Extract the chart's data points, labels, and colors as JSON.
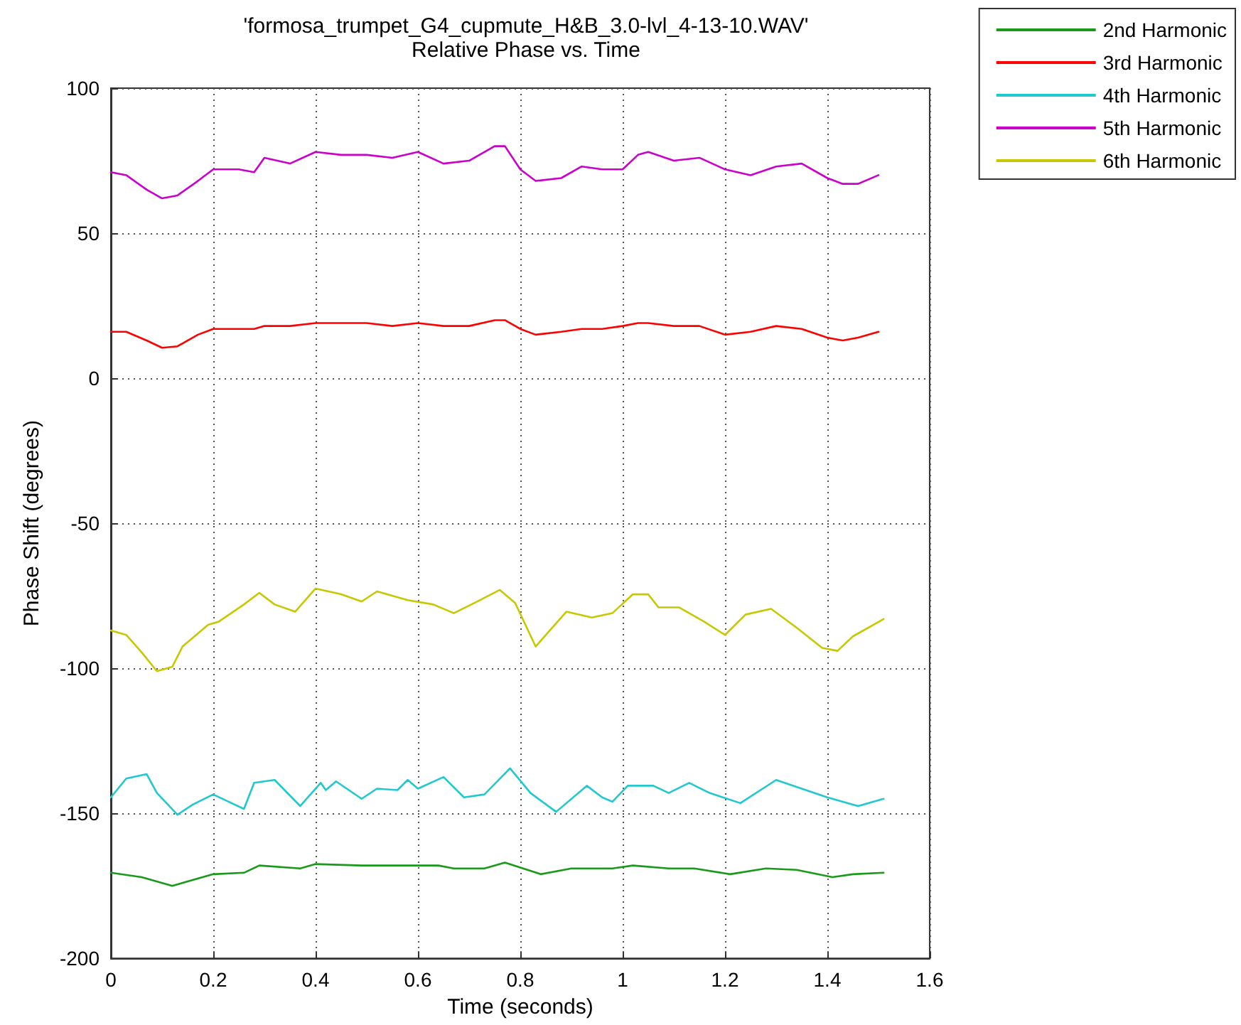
{
  "chart_data": {
    "type": "line",
    "title": "'formosa_trumpet_G4_cupmute_H&B_3.0-lvl_4-13-10.WAV'",
    "subtitle": "Relative Phase vs. Time",
    "xlabel": "Time (seconds)",
    "ylabel": "Phase Shift (degrees)",
    "xlim": [
      0,
      1.6
    ],
    "xticks": [
      0,
      0.2,
      0.4,
      0.6,
      0.8,
      1,
      1.2,
      1.4,
      1.6
    ],
    "ylim": [
      -200,
      100
    ],
    "yticks": [
      -200,
      -150,
      -100,
      -50,
      0,
      50,
      100
    ],
    "grid": true,
    "legend": "top right",
    "marker": "none",
    "line_style": "solid",
    "series": [
      {
        "name": "2nd Harmonic",
        "color": "#1a9a1a",
        "x": [
          0,
          0.06,
          0.12,
          0.2,
          0.26,
          0.29,
          0.37,
          0.4,
          0.49,
          0.56,
          0.64,
          0.67,
          0.73,
          0.77,
          0.84,
          0.9,
          0.98,
          1.02,
          1.09,
          1.14,
          1.21,
          1.28,
          1.34,
          1.41,
          1.45,
          1.51
        ],
        "values": [
          -170.5,
          -172,
          -175,
          -171,
          -170.5,
          -168,
          -169,
          -167.5,
          -168,
          -168,
          -168,
          -169,
          -169,
          -167,
          -171,
          -169,
          -169,
          -168,
          -169,
          -169,
          -171,
          -169,
          -169.5,
          -172,
          -171,
          -170.5
        ]
      },
      {
        "name": "3rd Harmonic",
        "color": "#ff0000",
        "x": [
          0,
          0.03,
          0.07,
          0.1,
          0.13,
          0.17,
          0.2,
          0.25,
          0.28,
          0.3,
          0.35,
          0.4,
          0.45,
          0.5,
          0.55,
          0.6,
          0.65,
          0.7,
          0.75,
          0.77,
          0.8,
          0.83,
          0.88,
          0.92,
          0.96,
          1.0,
          1.03,
          1.05,
          1.1,
          1.15,
          1.2,
          1.25,
          1.3,
          1.35,
          1.4,
          1.43,
          1.46,
          1.5
        ],
        "values": [
          16,
          16,
          13,
          10.5,
          11,
          15,
          17,
          17,
          17,
          18,
          18,
          19,
          19,
          19,
          18,
          19,
          18,
          18,
          20,
          20,
          17,
          15,
          16,
          17,
          17,
          18,
          19,
          19,
          18,
          18,
          15,
          16,
          18,
          17,
          14,
          13,
          14,
          16
        ]
      },
      {
        "name": "4th Harmonic",
        "color": "#20c8d0",
        "x": [
          0,
          0.03,
          0.07,
          0.09,
          0.13,
          0.16,
          0.2,
          0.23,
          0.26,
          0.28,
          0.32,
          0.37,
          0.41,
          0.42,
          0.44,
          0.49,
          0.52,
          0.56,
          0.58,
          0.6,
          0.65,
          0.69,
          0.73,
          0.78,
          0.82,
          0.87,
          0.93,
          0.96,
          0.98,
          1.01,
          1.06,
          1.09,
          1.13,
          1.17,
          1.23,
          1.3,
          1.35,
          1.4,
          1.46,
          1.51
        ],
        "values": [
          -144.5,
          -138,
          -136.5,
          -143,
          -150.5,
          -147,
          -143.5,
          -146,
          -148.5,
          -139.5,
          -138.5,
          -147.5,
          -139.5,
          -142,
          -139,
          -145,
          -141.5,
          -142,
          -138.5,
          -141.5,
          -137.5,
          -144.5,
          -143.5,
          -134.5,
          -143,
          -149.5,
          -140.5,
          -144.5,
          -146,
          -140.5,
          -140.5,
          -143,
          -139.5,
          -143,
          -146.5,
          -138.5,
          -141.5,
          -144.5,
          -147.5,
          -145
        ]
      },
      {
        "name": "5th Harmonic",
        "color": "#cc00cc",
        "x": [
          0,
          0.03,
          0.07,
          0.1,
          0.13,
          0.17,
          0.2,
          0.25,
          0.28,
          0.3,
          0.35,
          0.4,
          0.45,
          0.5,
          0.55,
          0.6,
          0.65,
          0.7,
          0.75,
          0.77,
          0.8,
          0.83,
          0.88,
          0.92,
          0.96,
          1.0,
          1.03,
          1.05,
          1.1,
          1.15,
          1.2,
          1.25,
          1.3,
          1.35,
          1.4,
          1.43,
          1.46,
          1.5
        ],
        "values": [
          71,
          70,
          65,
          62,
          63,
          68,
          72,
          72,
          71,
          76,
          74,
          78,
          77,
          77,
          76,
          78,
          74,
          75,
          80,
          80,
          72,
          68,
          69,
          73,
          72,
          72,
          77,
          78,
          75,
          76,
          72,
          70,
          73,
          74,
          69,
          67,
          67,
          70
        ]
      },
      {
        "name": "6th Harmonic",
        "color": "#c8c800",
        "x": [
          0,
          0.03,
          0.06,
          0.09,
          0.12,
          0.14,
          0.19,
          0.21,
          0.26,
          0.29,
          0.32,
          0.36,
          0.4,
          0.45,
          0.49,
          0.52,
          0.58,
          0.63,
          0.67,
          0.71,
          0.76,
          0.79,
          0.83,
          0.89,
          0.94,
          0.98,
          1.02,
          1.05,
          1.07,
          1.11,
          1.16,
          1.2,
          1.24,
          1.29,
          1.34,
          1.39,
          1.42,
          1.45,
          1.51
        ],
        "values": [
          -87,
          -88.5,
          -94.5,
          -101,
          -99.5,
          -92.5,
          -85,
          -84,
          -78,
          -74,
          -78,
          -80.5,
          -72.5,
          -74.5,
          -77,
          -73.5,
          -76.5,
          -78,
          -81,
          -77.5,
          -73,
          -77.5,
          -92.5,
          -80.5,
          -82.5,
          -81,
          -74.5,
          -74.5,
          -79,
          -79,
          -84,
          -88.5,
          -81.5,
          -79.5,
          -86,
          -93,
          -94,
          -89,
          -83
        ]
      }
    ]
  }
}
